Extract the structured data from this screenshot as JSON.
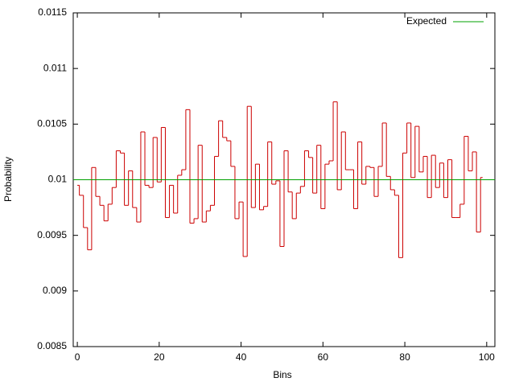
{
  "chart_data": {
    "type": "histeps",
    "xlabel": "Bins",
    "ylabel": "Probability",
    "xlim": [
      -1,
      102
    ],
    "xticks": [
      0,
      20,
      40,
      60,
      80,
      100
    ],
    "ylim": [
      0.0085,
      0.0115
    ],
    "yticks": [
      0.0085,
      0.009,
      0.0095,
      0.01,
      0.0105,
      0.011,
      0.0115
    ],
    "series": [
      {
        "color": "#cc0000",
        "x": [
          0,
          1,
          2,
          3,
          4,
          5,
          6,
          7,
          8,
          9,
          10,
          11,
          12,
          13,
          14,
          15,
          16,
          17,
          18,
          19,
          20,
          21,
          22,
          23,
          24,
          25,
          26,
          27,
          28,
          29,
          30,
          31,
          32,
          33,
          34,
          35,
          36,
          37,
          38,
          39,
          40,
          41,
          42,
          43,
          44,
          45,
          46,
          47,
          48,
          49,
          50,
          51,
          52,
          53,
          54,
          55,
          56,
          57,
          58,
          59,
          60,
          61,
          62,
          63,
          64,
          65,
          66,
          67,
          68,
          69,
          70,
          71,
          72,
          73,
          74,
          75,
          76,
          77,
          78,
          79,
          80,
          81,
          82,
          83,
          84,
          85,
          86,
          87,
          88,
          89,
          90,
          91,
          92,
          93,
          94,
          95,
          96,
          97,
          98,
          99
        ],
        "values": [
          0.00995,
          0.00986,
          0.00957,
          0.00937,
          0.01011,
          0.00985,
          0.00977,
          0.00963,
          0.00978,
          0.00993,
          0.01026,
          0.01024,
          0.00977,
          0.01008,
          0.00975,
          0.00962,
          0.01043,
          0.00995,
          0.00993,
          0.01038,
          0.00998,
          0.01047,
          0.00966,
          0.00995,
          0.0097,
          0.01004,
          0.01009,
          0.01063,
          0.00961,
          0.00965,
          0.01031,
          0.00962,
          0.00972,
          0.00977,
          0.01021,
          0.01053,
          0.01038,
          0.01035,
          0.01012,
          0.00965,
          0.0098,
          0.00931,
          0.01066,
          0.00975,
          0.01014,
          0.00973,
          0.00976,
          0.01034,
          0.00996,
          0.00999,
          0.0094,
          0.01026,
          0.00989,
          0.00965,
          0.00988,
          0.00994,
          0.01026,
          0.0102,
          0.00988,
          0.01031,
          0.00974,
          0.01014,
          0.01017,
          0.0107,
          0.00991,
          0.01043,
          0.01009,
          0.01009,
          0.00974,
          0.01034,
          0.00996,
          0.01012,
          0.01011,
          0.00985,
          0.01012,
          0.01051,
          0.01003,
          0.00991,
          0.00986,
          0.0093,
          0.01024,
          0.01051,
          0.01002,
          0.01048,
          0.01007,
          0.01021,
          0.00984,
          0.01022,
          0.00993,
          0.01015,
          0.00984,
          0.01018,
          0.00966,
          0.00966,
          0.00978,
          0.01039,
          0.01008,
          0.01025,
          0.00953,
          0.01002
        ]
      }
    ],
    "lines": [
      {
        "name": "Expected",
        "color": "#00a000",
        "value": 0.01
      }
    ],
    "legend": "top-right"
  }
}
